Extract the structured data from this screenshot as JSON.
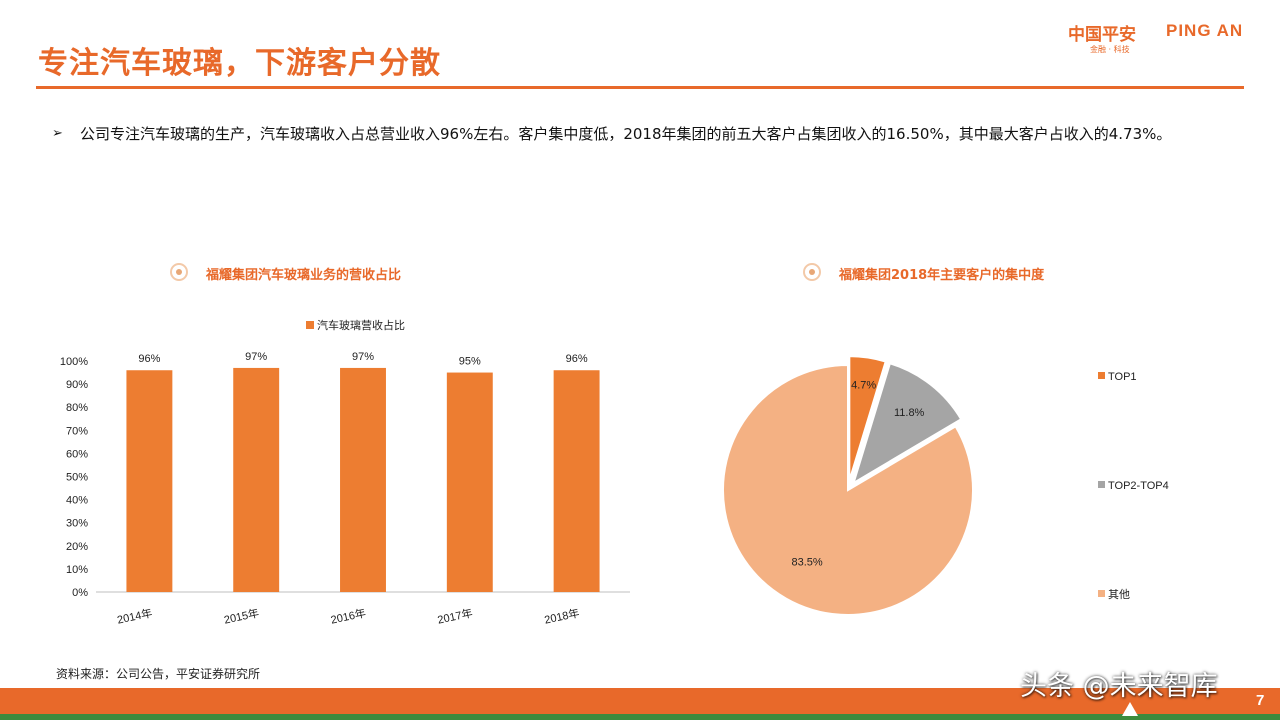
{
  "header": {
    "title": "专注汽车玻璃，下游客户分散",
    "logo_cn": "中国平安",
    "logo_en": "PING AN",
    "logo_sub": "金融 · 科技"
  },
  "bullet": {
    "text": "公司专注汽车玻璃的生产，汽车玻璃收入占总营业收入96%左右。客户集中度低，2018年集团的前五大客户占集团收入的16.50%，其中最大客户占收入的4.73%。"
  },
  "left_chart": {
    "heading": "福耀集团汽车玻璃业务的营收占比"
  },
  "right_chart": {
    "heading": "福耀集团2018年主要客户的集中度"
  },
  "footer": {
    "source": "资料来源：公司公告，平安证券研究所",
    "page": "7",
    "watermark": "头条 @未来智库"
  },
  "colors": {
    "accent": "#e8692a",
    "bar": "#ed7d31",
    "top1": "#ed7d31",
    "top2_4": "#a5a5a5",
    "other": "#f4b183",
    "footer_green": "#3d8a3d"
  },
  "chart_data": [
    {
      "type": "bar",
      "categories": [
        "2014年",
        "2015年",
        "2016年",
        "2017年",
        "2018年"
      ],
      "series": [
        {
          "name": "汽车玻璃营收占比",
          "values": [
            96,
            97,
            97,
            95,
            96
          ]
        }
      ],
      "data_labels": [
        "96%",
        "97%",
        "97%",
        "95%",
        "96%"
      ],
      "ylim": [
        0,
        100
      ],
      "yticks": [
        "0%",
        "10%",
        "20%",
        "30%",
        "40%",
        "50%",
        "60%",
        "70%",
        "80%",
        "90%",
        "100%"
      ],
      "legend": "top-center",
      "grid": false
    },
    {
      "type": "pie",
      "labels": [
        "TOP1",
        "TOP2-TOP4",
        "其他"
      ],
      "values": [
        4.7,
        11.8,
        83.5
      ],
      "data_labels": [
        "4.7%",
        "11.8%",
        "83.5%"
      ],
      "legend": "right",
      "exploded": true
    }
  ]
}
